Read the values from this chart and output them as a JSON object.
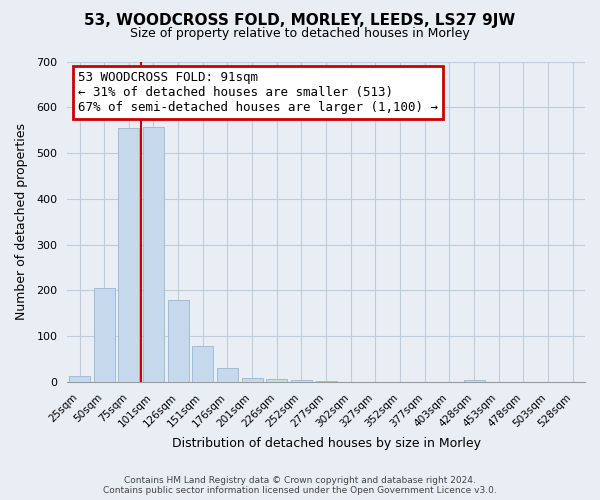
{
  "title": "53, WOODCROSS FOLD, MORLEY, LEEDS, LS27 9JW",
  "subtitle": "Size of property relative to detached houses in Morley",
  "xlabel": "Distribution of detached houses by size in Morley",
  "ylabel": "Number of detached properties",
  "bar_labels": [
    "25sqm",
    "50sqm",
    "75sqm",
    "101sqm",
    "126sqm",
    "151sqm",
    "176sqm",
    "201sqm",
    "226sqm",
    "252sqm",
    "277sqm",
    "302sqm",
    "327sqm",
    "352sqm",
    "377sqm",
    "403sqm",
    "428sqm",
    "453sqm",
    "478sqm",
    "503sqm",
    "528sqm"
  ],
  "bar_values": [
    13,
    205,
    555,
    557,
    180,
    78,
    30,
    10,
    7,
    5,
    3,
    0,
    0,
    0,
    0,
    0,
    5,
    0,
    0,
    0,
    0
  ],
  "bar_color": "#c5d8ec",
  "bar_edge_color": "#a0bcd8",
  "annotation_text_line1": "53 WOODCROSS FOLD: 91sqm",
  "annotation_text_line2": "← 31% of detached houses are smaller (513)",
  "annotation_text_line3": "67% of semi-detached houses are larger (1,100) →",
  "annotation_box_color": "#cc0000",
  "vline_color": "#cc0000",
  "vline_x": 2.5,
  "ylim": [
    0,
    700
  ],
  "yticks": [
    0,
    100,
    200,
    300,
    400,
    500,
    600,
    700
  ],
  "footer_line1": "Contains HM Land Registry data © Crown copyright and database right 2024.",
  "footer_line2": "Contains public sector information licensed under the Open Government Licence v3.0.",
  "fig_bg_color": "#e8eef4",
  "plot_bg_color": "#e8eef4",
  "grid_color": "#c0cdd8",
  "title_fontsize": 11,
  "subtitle_fontsize": 9,
  "axis_label_fontsize": 9,
  "tick_fontsize": 8,
  "annotation_fontsize": 9
}
